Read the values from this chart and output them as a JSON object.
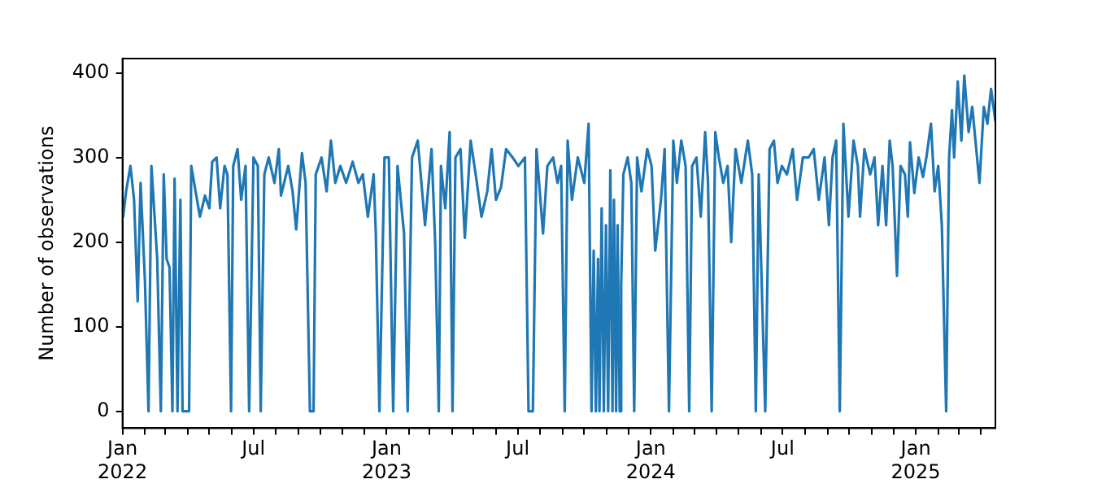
{
  "chart_data": {
    "type": "line",
    "ylabel": "Number of observations",
    "legend": false,
    "grid": false,
    "marker": "none",
    "line_style": "solid",
    "xlim": [
      "2022-01-01",
      "2025-04-21"
    ],
    "ylim": [
      -20,
      417
    ],
    "yticks": [
      0,
      100,
      200,
      300,
      400
    ],
    "xticks": [
      {
        "value": "2022-01",
        "label": "Jan\n2022"
      },
      {
        "value": "2022-02",
        "label": null
      },
      {
        "value": "2022-03",
        "label": null
      },
      {
        "value": "2022-04",
        "label": null
      },
      {
        "value": "2022-05",
        "label": null
      },
      {
        "value": "2022-06",
        "label": null
      },
      {
        "value": "2022-07",
        "label": "Jul"
      },
      {
        "value": "2022-08",
        "label": null
      },
      {
        "value": "2022-09",
        "label": null
      },
      {
        "value": "2022-10",
        "label": null
      },
      {
        "value": "2022-11",
        "label": null
      },
      {
        "value": "2022-12",
        "label": null
      },
      {
        "value": "2023-01",
        "label": "Jan\n2023"
      },
      {
        "value": "2023-02",
        "label": null
      },
      {
        "value": "2023-03",
        "label": null
      },
      {
        "value": "2023-04",
        "label": null
      },
      {
        "value": "2023-05",
        "label": null
      },
      {
        "value": "2023-06",
        "label": null
      },
      {
        "value": "2023-07",
        "label": "Jul"
      },
      {
        "value": "2023-08",
        "label": null
      },
      {
        "value": "2023-09",
        "label": null
      },
      {
        "value": "2023-10",
        "label": null
      },
      {
        "value": "2023-11",
        "label": null
      },
      {
        "value": "2023-12",
        "label": null
      },
      {
        "value": "2024-01",
        "label": "Jan\n2024"
      },
      {
        "value": "2024-02",
        "label": null
      },
      {
        "value": "2024-03",
        "label": null
      },
      {
        "value": "2024-04",
        "label": null
      },
      {
        "value": "2024-05",
        "label": null
      },
      {
        "value": "2024-06",
        "label": null
      },
      {
        "value": "2024-07",
        "label": "Jul"
      },
      {
        "value": "2024-08",
        "label": null
      },
      {
        "value": "2024-09",
        "label": null
      },
      {
        "value": "2024-10",
        "label": null
      },
      {
        "value": "2024-11",
        "label": null
      },
      {
        "value": "2024-12",
        "label": null
      },
      {
        "value": "2025-01",
        "label": "Jan\n2025"
      },
      {
        "value": "2025-02",
        "label": null
      },
      {
        "value": "2025-03",
        "label": null
      },
      {
        "value": "2025-04",
        "label": null
      }
    ],
    "x": [
      "2022-01-02",
      "2022-01-06",
      "2022-01-12",
      "2022-01-17",
      "2022-01-22",
      "2022-01-26",
      "2022-02-01",
      "2022-02-06",
      "2022-02-10",
      "2022-02-18",
      "2022-02-23",
      "2022-02-27",
      "2022-03-03",
      "2022-03-07",
      "2022-03-11",
      "2022-03-14",
      "2022-03-18",
      "2022-03-22",
      "2022-03-25",
      "2022-04-03",
      "2022-04-06",
      "2022-04-12",
      "2022-04-18",
      "2022-04-25",
      "2022-05-01",
      "2022-05-05",
      "2022-05-11",
      "2022-05-16",
      "2022-05-22",
      "2022-05-26",
      "2022-05-31",
      "2022-06-03",
      "2022-06-09",
      "2022-06-14",
      "2022-06-20",
      "2022-06-25",
      "2022-07-01",
      "2022-07-07",
      "2022-07-11",
      "2022-07-16",
      "2022-07-22",
      "2022-07-30",
      "2022-08-05",
      "2022-08-08",
      "2022-08-18",
      "2022-08-24",
      "2022-08-29",
      "2022-09-06",
      "2022-09-11",
      "2022-09-17",
      "2022-09-22",
      "2022-09-25",
      "2022-10-03",
      "2022-10-10",
      "2022-10-16",
      "2022-10-22",
      "2022-10-29",
      "2022-11-06",
      "2022-11-15",
      "2022-11-23",
      "2022-11-29",
      "2022-12-06",
      "2022-12-14",
      "2022-12-17",
      "2022-12-22",
      "2022-12-29",
      "2023-01-04",
      "2023-01-10",
      "2023-01-16",
      "2023-01-25",
      "2023-01-30",
      "2023-02-05",
      "2023-02-13",
      "2023-02-23",
      "2023-03-04",
      "2023-03-09",
      "2023-03-14",
      "2023-03-17",
      "2023-03-23",
      "2023-03-29",
      "2023-04-02",
      "2023-04-06",
      "2023-04-13",
      "2023-04-19",
      "2023-04-27",
      "2023-05-04",
      "2023-05-12",
      "2023-05-20",
      "2023-05-26",
      "2023-06-01",
      "2023-06-08",
      "2023-06-15",
      "2023-06-24",
      "2023-07-02",
      "2023-07-11",
      "2023-07-16",
      "2023-07-22",
      "2023-07-27",
      "2023-08-05",
      "2023-08-11",
      "2023-08-19",
      "2023-08-25",
      "2023-08-30",
      "2023-09-04",
      "2023-09-08",
      "2023-09-14",
      "2023-09-22",
      "2023-10-01",
      "2023-10-07",
      "2023-10-11",
      "2023-10-14",
      "2023-10-17",
      "2023-10-20",
      "2023-10-22",
      "2023-10-25",
      "2023-10-28",
      "2023-10-31",
      "2023-11-03",
      "2023-11-06",
      "2023-11-09",
      "2023-11-11",
      "2023-11-14",
      "2023-11-16",
      "2023-11-19",
      "2023-11-21",
      "2023-11-24",
      "2023-11-30",
      "2023-12-05",
      "2023-12-09",
      "2023-12-13",
      "2023-12-19",
      "2023-12-27",
      "2024-01-02",
      "2024-01-07",
      "2024-01-15",
      "2024-01-20",
      "2024-01-26",
      "2024-02-01",
      "2024-02-06",
      "2024-02-12",
      "2024-02-18",
      "2024-02-23",
      "2024-02-27",
      "2024-03-04",
      "2024-03-10",
      "2024-03-16",
      "2024-03-20",
      "2024-03-25",
      "2024-03-30",
      "2024-04-04",
      "2024-04-10",
      "2024-04-16",
      "2024-04-21",
      "2024-04-27",
      "2024-05-05",
      "2024-05-14",
      "2024-05-20",
      "2024-05-25",
      "2024-05-29",
      "2024-06-07",
      "2024-06-13",
      "2024-06-19",
      "2024-06-24",
      "2024-06-30",
      "2024-07-07",
      "2024-07-15",
      "2024-07-21",
      "2024-07-29",
      "2024-08-06",
      "2024-08-13",
      "2024-08-20",
      "2024-08-28",
      "2024-09-03",
      "2024-09-08",
      "2024-09-13",
      "2024-09-18",
      "2024-09-23",
      "2024-09-30",
      "2024-10-07",
      "2024-10-13",
      "2024-10-16",
      "2024-10-22",
      "2024-10-30",
      "2024-11-05",
      "2024-11-10",
      "2024-11-16",
      "2024-11-21",
      "2024-11-26",
      "2024-11-30",
      "2024-12-06",
      "2024-12-11",
      "2024-12-17",
      "2024-12-21",
      "2024-12-24",
      "2024-12-30",
      "2025-01-05",
      "2025-01-11",
      "2025-01-16",
      "2025-01-22",
      "2025-01-27",
      "2025-02-01",
      "2025-02-06",
      "2025-02-12",
      "2025-02-16",
      "2025-02-20",
      "2025-02-23",
      "2025-02-28",
      "2025-03-05",
      "2025-03-09",
      "2025-03-15",
      "2025-03-20",
      "2025-03-30",
      "2025-04-05",
      "2025-04-10",
      "2025-04-15",
      "2025-04-21"
    ],
    "series": [
      {
        "color": "#1f77b4",
        "values": [
          230,
          260,
          290,
          250,
          130,
          270,
          155,
          0,
          290,
          180,
          0,
          280,
          180,
          170,
          0,
          275,
          0,
          250,
          0,
          0,
          290,
          260,
          230,
          255,
          240,
          295,
          300,
          240,
          290,
          280,
          0,
          290,
          310,
          250,
          290,
          0,
          300,
          290,
          0,
          280,
          300,
          270,
          310,
          255,
          290,
          260,
          215,
          305,
          270,
          0,
          0,
          280,
          300,
          260,
          320,
          270,
          290,
          270,
          295,
          270,
          280,
          230,
          280,
          210,
          0,
          300,
          300,
          0,
          290,
          210,
          0,
          300,
          320,
          220,
          310,
          200,
          0,
          290,
          240,
          330,
          0,
          300,
          310,
          205,
          320,
          280,
          230,
          260,
          310,
          250,
          265,
          310,
          300,
          290,
          300,
          0,
          0,
          310,
          210,
          290,
          300,
          270,
          290,
          0,
          320,
          250,
          300,
          270,
          340,
          0,
          190,
          0,
          180,
          0,
          240,
          0,
          220,
          0,
          285,
          0,
          250,
          0,
          220,
          0,
          150,
          280,
          300,
          270,
          0,
          300,
          260,
          310,
          290,
          190,
          250,
          310,
          0,
          320,
          270,
          320,
          290,
          0,
          290,
          300,
          230,
          330,
          270,
          0,
          330,
          300,
          270,
          290,
          200,
          310,
          270,
          320,
          280,
          0,
          280,
          0,
          310,
          320,
          270,
          290,
          280,
          310,
          250,
          300,
          300,
          310,
          250,
          300,
          220,
          300,
          320,
          0,
          340,
          230,
          320,
          290,
          230,
          310,
          280,
          300,
          220,
          290,
          220,
          320,
          290,
          160,
          290,
          280,
          230,
          318,
          258,
          300,
          277,
          302,
          340,
          260,
          290,
          220,
          0,
          300,
          356,
          300,
          390,
          320,
          397,
          330,
          360,
          270,
          360,
          340,
          381,
          343
        ]
      }
    ]
  }
}
